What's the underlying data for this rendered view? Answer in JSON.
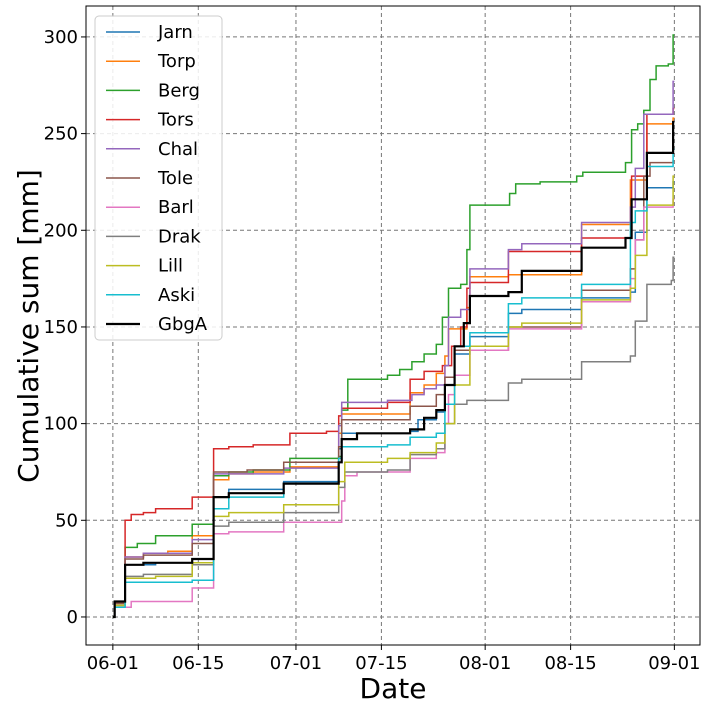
{
  "chart_data": {
    "type": "line",
    "step": true,
    "title": "",
    "xlabel": "Date",
    "ylabel": "Cumulative sum [mm]",
    "x_unit": "days since 06-01",
    "xlim": [
      -4.4,
      96.2
    ],
    "ylim": [
      -14.5,
      316
    ],
    "grid": true,
    "legend_position": "top-left",
    "xticks": [
      {
        "day": 0,
        "label": "06-01"
      },
      {
        "day": 14,
        "label": "06-15"
      },
      {
        "day": 30,
        "label": "07-01"
      },
      {
        "day": 44,
        "label": "07-15"
      },
      {
        "day": 61,
        "label": "08-01"
      },
      {
        "day": 75,
        "label": "08-15"
      },
      {
        "day": 92,
        "label": "09-01"
      }
    ],
    "yticks": [
      {
        "value": 0,
        "label": "0"
      },
      {
        "value": 50,
        "label": "50"
      },
      {
        "value": 100,
        "label": "100"
      },
      {
        "value": 150,
        "label": "150"
      },
      {
        "value": 200,
        "label": "200"
      },
      {
        "value": 250,
        "label": "250"
      },
      {
        "value": 300,
        "label": "300"
      }
    ],
    "series": [
      {
        "name": "Jarn",
        "color": "#1f77b4",
        "points": [
          [
            0,
            0
          ],
          [
            0.3,
            7
          ],
          [
            2,
            27
          ],
          [
            7,
            28
          ],
          [
            13,
            30
          ],
          [
            16.5,
            62
          ],
          [
            19,
            66
          ],
          [
            28,
            70
          ],
          [
            37,
            87
          ],
          [
            37.5,
            95
          ],
          [
            48.7,
            96
          ],
          [
            50,
            102
          ],
          [
            53,
            106
          ],
          [
            54.4,
            120
          ],
          [
            56,
            136
          ],
          [
            58.5,
            145
          ],
          [
            64.8,
            157
          ],
          [
            67,
            159
          ],
          [
            76.8,
            165
          ],
          [
            84.8,
            168
          ],
          [
            85.6,
            199
          ],
          [
            87.5,
            222
          ],
          [
            91.8,
            225
          ],
          [
            92,
            225
          ]
        ]
      },
      {
        "name": "Torp",
        "color": "#ff7f0e",
        "points": [
          [
            0,
            0
          ],
          [
            0.3,
            7
          ],
          [
            2,
            31
          ],
          [
            5,
            33
          ],
          [
            9,
            34
          ],
          [
            13,
            42
          ],
          [
            16.5,
            71
          ],
          [
            19,
            74
          ],
          [
            23,
            75
          ],
          [
            29,
            77.6
          ],
          [
            37,
            95
          ],
          [
            37.5,
            105
          ],
          [
            48.7,
            116
          ],
          [
            51,
            120
          ],
          [
            53,
            126
          ],
          [
            54.4,
            135
          ],
          [
            55,
            149
          ],
          [
            58,
            160
          ],
          [
            58.5,
            176
          ],
          [
            64.8,
            177
          ],
          [
            76.8,
            203
          ],
          [
            84.8,
            226
          ],
          [
            87.5,
            255
          ],
          [
            91.8,
            258
          ],
          [
            92,
            258
          ]
        ]
      },
      {
        "name": "Berg",
        "color": "#2ca02c",
        "points": [
          [
            0,
            0
          ],
          [
            0.3,
            8
          ],
          [
            2,
            36
          ],
          [
            4,
            38
          ],
          [
            7,
            42
          ],
          [
            13,
            48
          ],
          [
            16.5,
            73
          ],
          [
            19,
            75
          ],
          [
            23,
            76
          ],
          [
            29,
            82
          ],
          [
            37,
            83
          ],
          [
            37.5,
            107
          ],
          [
            38.5,
            123
          ],
          [
            45,
            125
          ],
          [
            47,
            128
          ],
          [
            49,
            132
          ],
          [
            51,
            136
          ],
          [
            53,
            141
          ],
          [
            54,
            155
          ],
          [
            55,
            170
          ],
          [
            57,
            172
          ],
          [
            58,
            190
          ],
          [
            58.5,
            213
          ],
          [
            65,
            219
          ],
          [
            66,
            224
          ],
          [
            70,
            225
          ],
          [
            76,
            228
          ],
          [
            77,
            230
          ],
          [
            84,
            235
          ],
          [
            85,
            252
          ],
          [
            86,
            255
          ],
          [
            87,
            262
          ],
          [
            88,
            278
          ],
          [
            89,
            285
          ],
          [
            91,
            286
          ],
          [
            91.8,
            301
          ],
          [
            92,
            301
          ]
        ]
      },
      {
        "name": "Tors",
        "color": "#d62728",
        "points": [
          [
            0,
            0
          ],
          [
            0.3,
            6
          ],
          [
            2,
            50
          ],
          [
            3,
            53
          ],
          [
            5,
            54
          ],
          [
            7,
            56
          ],
          [
            13,
            62
          ],
          [
            16.5,
            87
          ],
          [
            19,
            88
          ],
          [
            23,
            89
          ],
          [
            29,
            95
          ],
          [
            35,
            96
          ],
          [
            37,
            104
          ],
          [
            37.5,
            108
          ],
          [
            45,
            111
          ],
          [
            48.7,
            123
          ],
          [
            51,
            127
          ],
          [
            54,
            130
          ],
          [
            55.5,
            140
          ],
          [
            57,
            150
          ],
          [
            58,
            170
          ],
          [
            58.5,
            173
          ],
          [
            64.8,
            189
          ],
          [
            76.8,
            196
          ],
          [
            85,
            228
          ],
          [
            87.5,
            260
          ],
          [
            91.8,
            263
          ],
          [
            92,
            263
          ]
        ]
      },
      {
        "name": "Chal",
        "color": "#9467bd",
        "points": [
          [
            0,
            0
          ],
          [
            0.3,
            8
          ],
          [
            2,
            31
          ],
          [
            5,
            33
          ],
          [
            13,
            40
          ],
          [
            16.5,
            74
          ],
          [
            28,
            77
          ],
          [
            37,
            99
          ],
          [
            37.5,
            111
          ],
          [
            45,
            112
          ],
          [
            49,
            115
          ],
          [
            51,
            118
          ],
          [
            53,
            120
          ],
          [
            54.4,
            130
          ],
          [
            55,
            155
          ],
          [
            57,
            159
          ],
          [
            58.5,
            180
          ],
          [
            64.8,
            190
          ],
          [
            67,
            193
          ],
          [
            76.8,
            204
          ],
          [
            84.8,
            212
          ],
          [
            85.6,
            232
          ],
          [
            87,
            260
          ],
          [
            91.8,
            277
          ],
          [
            92,
            277
          ]
        ]
      },
      {
        "name": "Tole",
        "color": "#8c564b",
        "points": [
          [
            0,
            0
          ],
          [
            0.3,
            7
          ],
          [
            2,
            30
          ],
          [
            5,
            32
          ],
          [
            13,
            38
          ],
          [
            16.5,
            75
          ],
          [
            22,
            76
          ],
          [
            28,
            80
          ],
          [
            37,
            88
          ],
          [
            37.5,
            102
          ],
          [
            48.7,
            109
          ],
          [
            53,
            115
          ],
          [
            54.4,
            124
          ],
          [
            56,
            138
          ],
          [
            64.8,
            150
          ],
          [
            76.8,
            169
          ],
          [
            84.8,
            180
          ],
          [
            85.6,
            195
          ],
          [
            87,
            228
          ],
          [
            88,
            235
          ],
          [
            91.8,
            236
          ],
          [
            92,
            236
          ]
        ]
      },
      {
        "name": "Barl",
        "color": "#e377c2",
        "points": [
          [
            0,
            0
          ],
          [
            0.3,
            5
          ],
          [
            3,
            8
          ],
          [
            13,
            15
          ],
          [
            16.5,
            43
          ],
          [
            19,
            44
          ],
          [
            28,
            49
          ],
          [
            37.5,
            60
          ],
          [
            38,
            73
          ],
          [
            40,
            75
          ],
          [
            48.7,
            82
          ],
          [
            53,
            85
          ],
          [
            54.4,
            100
          ],
          [
            55,
            115
          ],
          [
            56,
            125
          ],
          [
            58.5,
            138
          ],
          [
            64.8,
            149
          ],
          [
            76.8,
            163
          ],
          [
            84.8,
            175
          ],
          [
            85.6,
            195
          ],
          [
            87,
            212
          ],
          [
            91.8,
            216
          ],
          [
            92,
            216
          ]
        ]
      },
      {
        "name": "Drak",
        "color": "#7f7f7f",
        "points": [
          [
            0,
            0
          ],
          [
            0.3,
            6
          ],
          [
            2,
            21
          ],
          [
            5,
            22
          ],
          [
            13,
            27
          ],
          [
            16.5,
            47
          ],
          [
            19,
            49
          ],
          [
            28,
            54
          ],
          [
            37,
            67
          ],
          [
            38,
            75
          ],
          [
            45,
            76
          ],
          [
            48.7,
            84
          ],
          [
            53,
            87
          ],
          [
            54.4,
            100
          ],
          [
            56,
            110
          ],
          [
            58,
            112
          ],
          [
            64.8,
            121
          ],
          [
            67,
            123
          ],
          [
            76.8,
            132
          ],
          [
            84.8,
            135
          ],
          [
            85.6,
            153
          ],
          [
            87.5,
            172
          ],
          [
            91.5,
            174
          ],
          [
            91.8,
            186
          ],
          [
            92,
            186
          ]
        ]
      },
      {
        "name": "Lill",
        "color": "#bcbd22",
        "points": [
          [
            0,
            0
          ],
          [
            0.3,
            6
          ],
          [
            2,
            20
          ],
          [
            7,
            21
          ],
          [
            13,
            28
          ],
          [
            16.5,
            52
          ],
          [
            19,
            54
          ],
          [
            28,
            58
          ],
          [
            37,
            70
          ],
          [
            38,
            80
          ],
          [
            45,
            82
          ],
          [
            48.7,
            85
          ],
          [
            53,
            90
          ],
          [
            54.4,
            100
          ],
          [
            56,
            120
          ],
          [
            58.5,
            140
          ],
          [
            64.8,
            150
          ],
          [
            67,
            152
          ],
          [
            76.8,
            164
          ],
          [
            84.8,
            170
          ],
          [
            85.6,
            187
          ],
          [
            87.5,
            213
          ],
          [
            91.8,
            228
          ],
          [
            92,
            228
          ]
        ]
      },
      {
        "name": "Aski",
        "color": "#17becf",
        "points": [
          [
            0,
            0
          ],
          [
            0.3,
            5
          ],
          [
            2,
            18
          ],
          [
            13,
            19
          ],
          [
            16.5,
            56
          ],
          [
            19,
            62
          ],
          [
            28,
            69
          ],
          [
            37,
            82
          ],
          [
            37.5,
            88
          ],
          [
            45,
            89
          ],
          [
            48.7,
            93
          ],
          [
            53,
            95
          ],
          [
            54.4,
            110
          ],
          [
            56,
            140
          ],
          [
            58.5,
            147
          ],
          [
            64.8,
            162
          ],
          [
            67,
            165
          ],
          [
            76.8,
            172
          ],
          [
            84.8,
            204
          ],
          [
            85.6,
            210
          ],
          [
            87.5,
            233
          ],
          [
            91.8,
            242
          ],
          [
            92,
            242
          ]
        ]
      },
      {
        "name": "GbgA",
        "color": "#000000",
        "points": [
          [
            0,
            0
          ],
          [
            0.3,
            8
          ],
          [
            2,
            27
          ],
          [
            5,
            28
          ],
          [
            13,
            30
          ],
          [
            16.5,
            62
          ],
          [
            19,
            64
          ],
          [
            28,
            69
          ],
          [
            37,
            80
          ],
          [
            37.5,
            92
          ],
          [
            40,
            95
          ],
          [
            48.7,
            97
          ],
          [
            51,
            103
          ],
          [
            53,
            107
          ],
          [
            54.4,
            120
          ],
          [
            56,
            140
          ],
          [
            57.5,
            152
          ],
          [
            58.5,
            166
          ],
          [
            64.8,
            168
          ],
          [
            67,
            179
          ],
          [
            76.8,
            191
          ],
          [
            84,
            196
          ],
          [
            85,
            216
          ],
          [
            87.5,
            240
          ],
          [
            91.8,
            256
          ],
          [
            92,
            256
          ]
        ]
      }
    ]
  }
}
